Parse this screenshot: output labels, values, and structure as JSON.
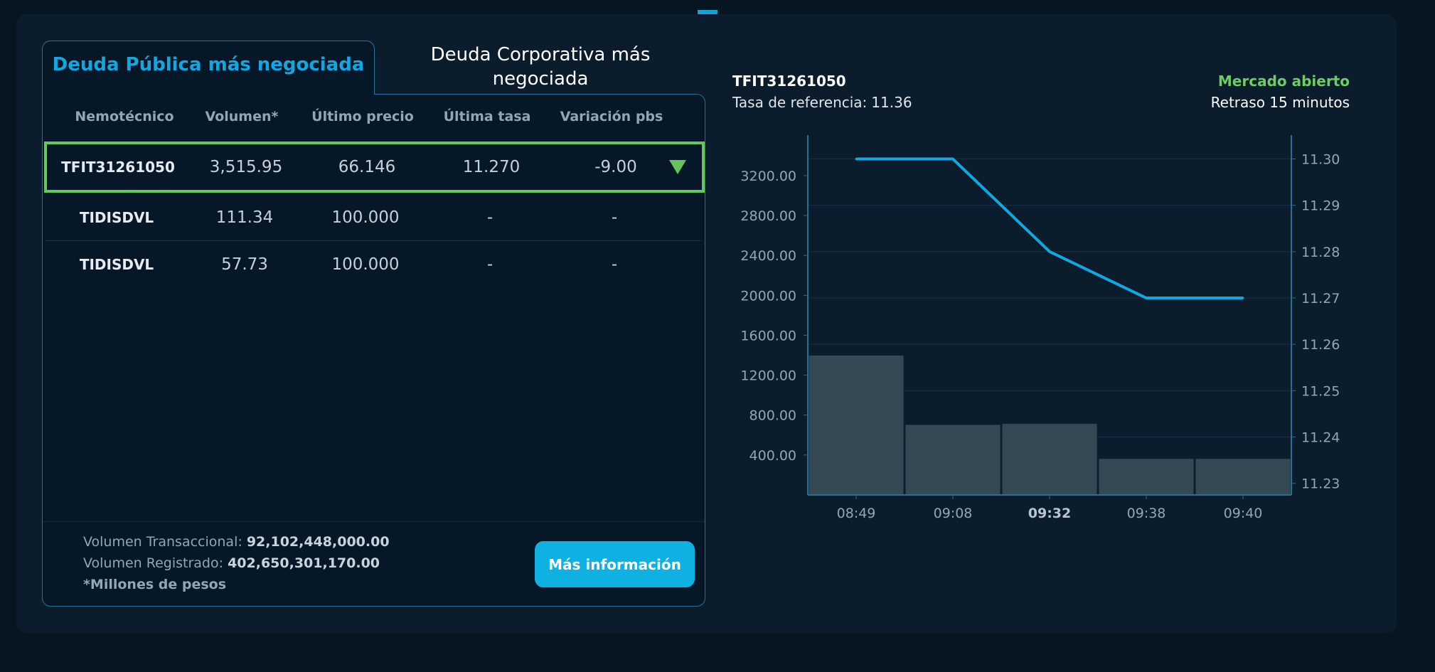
{
  "tabs": {
    "active": "Deuda Pública más negociada",
    "inactive": "Deuda Corporativa más negociada"
  },
  "table": {
    "headers": [
      "Nemotécnico",
      "Volumen*",
      "Último precio",
      "Última tasa",
      "Variación pbs"
    ],
    "rows": [
      {
        "nemo": "TFIT31261050",
        "volumen": "3,515.95",
        "precio": "66.146",
        "tasa": "11.270",
        "variacion": "-9.00",
        "trend": "down"
      },
      {
        "nemo": "TIDISDVL",
        "volumen": "111.34",
        "precio": "100.000",
        "tasa": "-",
        "variacion": "-"
      },
      {
        "nemo": "TIDISDVL",
        "volumen": "57.73",
        "precio": "100.000",
        "tasa": "-",
        "variacion": "-"
      }
    ]
  },
  "footer": {
    "transaccional_label": "Volumen Transaccional:",
    "transaccional_value": "92,102,448,000.00",
    "registrado_label": "Volumen Registrado:",
    "registrado_value": "402,650,301,170.00",
    "note": "*Millones de pesos",
    "button": "Más información"
  },
  "detail": {
    "nemo": "TFIT31261050",
    "ref_label": "Tasa de referencia:",
    "ref_value": "11.36",
    "status": "Mercado abierto",
    "delay": "Retraso 15 minutos"
  },
  "colors": {
    "accent": "#13a7e1",
    "open": "#6fcb63",
    "bar": "#354955",
    "line": "#13a7e1"
  },
  "chart_data": {
    "type": "bar+line",
    "categories": [
      "08:49",
      "09:08",
      "09:32",
      "09:38",
      "09:40"
    ],
    "highlight_category": "09:32",
    "bars": {
      "name": "",
      "values": [
        1400,
        705,
        715,
        365,
        365
      ],
      "axis": "left"
    },
    "line": {
      "name": "",
      "values": [
        11.3,
        11.3,
        11.28,
        11.27,
        11.27
      ],
      "axis": "right"
    },
    "y_left": {
      "min": 0,
      "max": 3520,
      "ticks": [
        400,
        800,
        1200,
        1600,
        2000,
        2400,
        2800,
        3200
      ],
      "decimals": 2
    },
    "y_right": {
      "min": 11.2275,
      "max": 11.3033,
      "ticks": [
        11.23,
        11.24,
        11.25,
        11.26,
        11.27,
        11.28,
        11.29,
        11.3
      ],
      "decimals": 2
    },
    "grid": true
  }
}
